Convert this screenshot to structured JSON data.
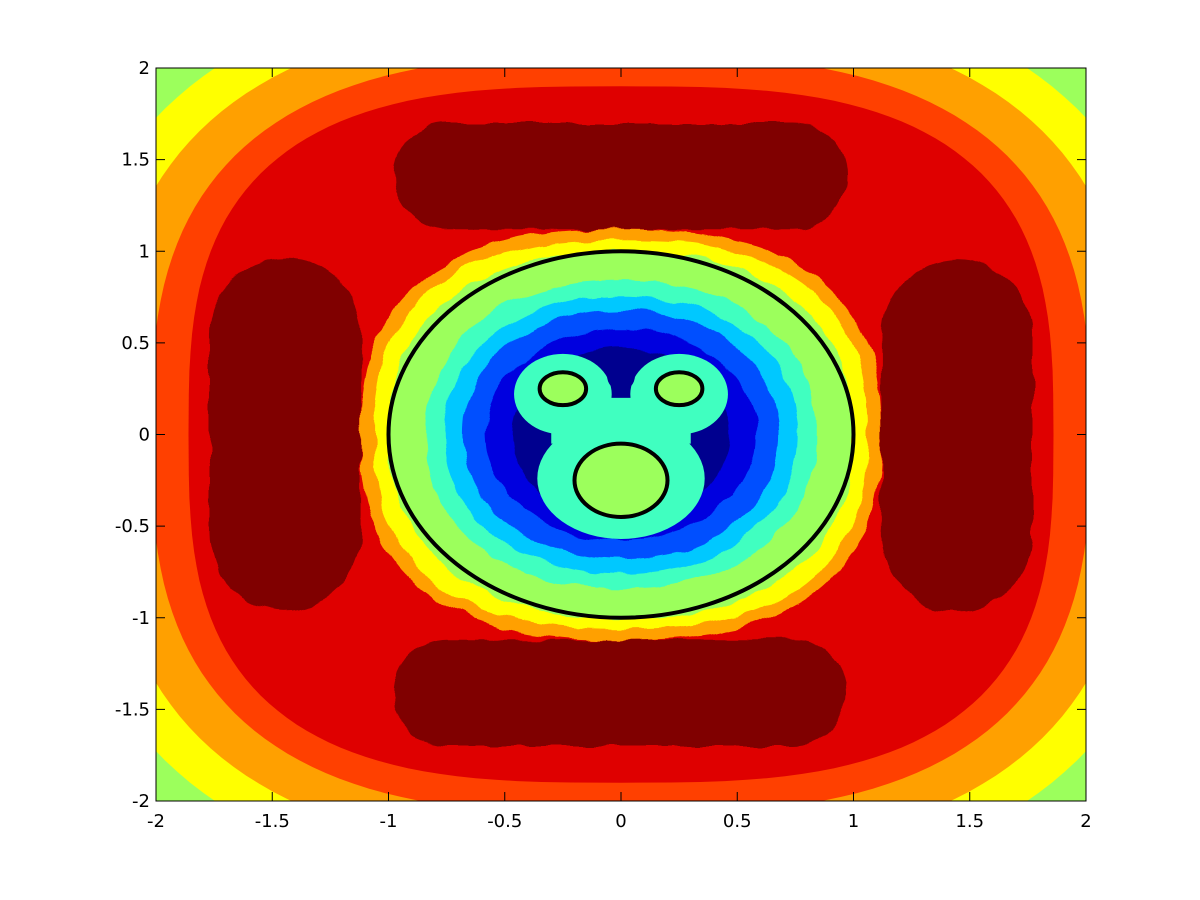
{
  "chart_data": {
    "type": "heatmap",
    "subtype": "filled-contour",
    "title": "",
    "xlabel": "",
    "ylabel": "",
    "xlim": [
      -2,
      2
    ],
    "ylim": [
      -2,
      2
    ],
    "x_ticks": [
      -2,
      -1.5,
      -1,
      -0.5,
      0,
      0.5,
      1,
      1.5,
      2
    ],
    "y_ticks": [
      2,
      1.5,
      1,
      0.5,
      0,
      -0.5,
      -1,
      -1.5,
      -2
    ],
    "x_tick_labels": [
      "-2",
      "-1.5",
      "-1",
      "-0.5",
      "0",
      "0.5",
      "1",
      "1.5",
      "2"
    ],
    "y_tick_labels": [
      "2",
      "1.5",
      "1",
      "0.5",
      "0",
      "-0.5",
      "-1",
      "-1.5",
      "-2"
    ],
    "grid": false,
    "legend": "none",
    "colormap": "jet",
    "colorbar": false,
    "level_colors": [
      "#00008f",
      "#0000df",
      "#0040ff",
      "#00a0ff",
      "#00ffff",
      "#40ffc0",
      "#a0ff60",
      "#ffff00",
      "#ffa000",
      "#ff4000",
      "#df0000",
      "#800000"
    ],
    "contour_colors": {
      "outer_corners": "#9cff5c",
      "yellow_band": "#ffff00",
      "orange_band": "#ffa000",
      "red_orange_band": "#ff4000",
      "red_band": "#df0000",
      "peak_lobes": "#800000",
      "inner_green": "#9cff5c",
      "inner_cyan": "#40ffc0",
      "sky_blue": "#00c8ff",
      "blue": "#0050ff",
      "deep_blue": "#0000df",
      "navy": "#00008f",
      "obstacle_fill": "#9cff5c"
    },
    "peak_lobes": [
      {
        "name": "top",
        "x_range": [
          -0.98,
          0.97
        ],
        "y_range": [
          1.12,
          1.7
        ]
      },
      {
        "name": "bottom",
        "x_range": [
          -0.98,
          0.97
        ],
        "y_range": [
          -1.7,
          -1.12
        ]
      },
      {
        "name": "left",
        "x_range": [
          -1.77,
          -1.12
        ],
        "y_range": [
          -0.96,
          0.96
        ]
      },
      {
        "name": "right",
        "x_range": [
          1.12,
          1.77
        ],
        "y_range": [
          -0.96,
          0.96
        ]
      }
    ],
    "boundary_curves": [
      {
        "name": "unit-circle",
        "shape": "ellipse",
        "cx": 0,
        "cy": 0,
        "rx": 1.0,
        "ry": 1.0,
        "color": "#000000"
      },
      {
        "name": "left-ear",
        "shape": "ellipse",
        "cx": -0.25,
        "cy": 0.25,
        "rx": 0.1,
        "ry": 0.09,
        "color": "#000000"
      },
      {
        "name": "right-ear",
        "shape": "ellipse",
        "cx": 0.25,
        "cy": 0.25,
        "rx": 0.1,
        "ry": 0.09,
        "color": "#000000"
      },
      {
        "name": "face",
        "shape": "ellipse",
        "cx": 0,
        "cy": -0.25,
        "rx": 0.2,
        "ry": 0.2,
        "color": "#000000"
      }
    ]
  }
}
